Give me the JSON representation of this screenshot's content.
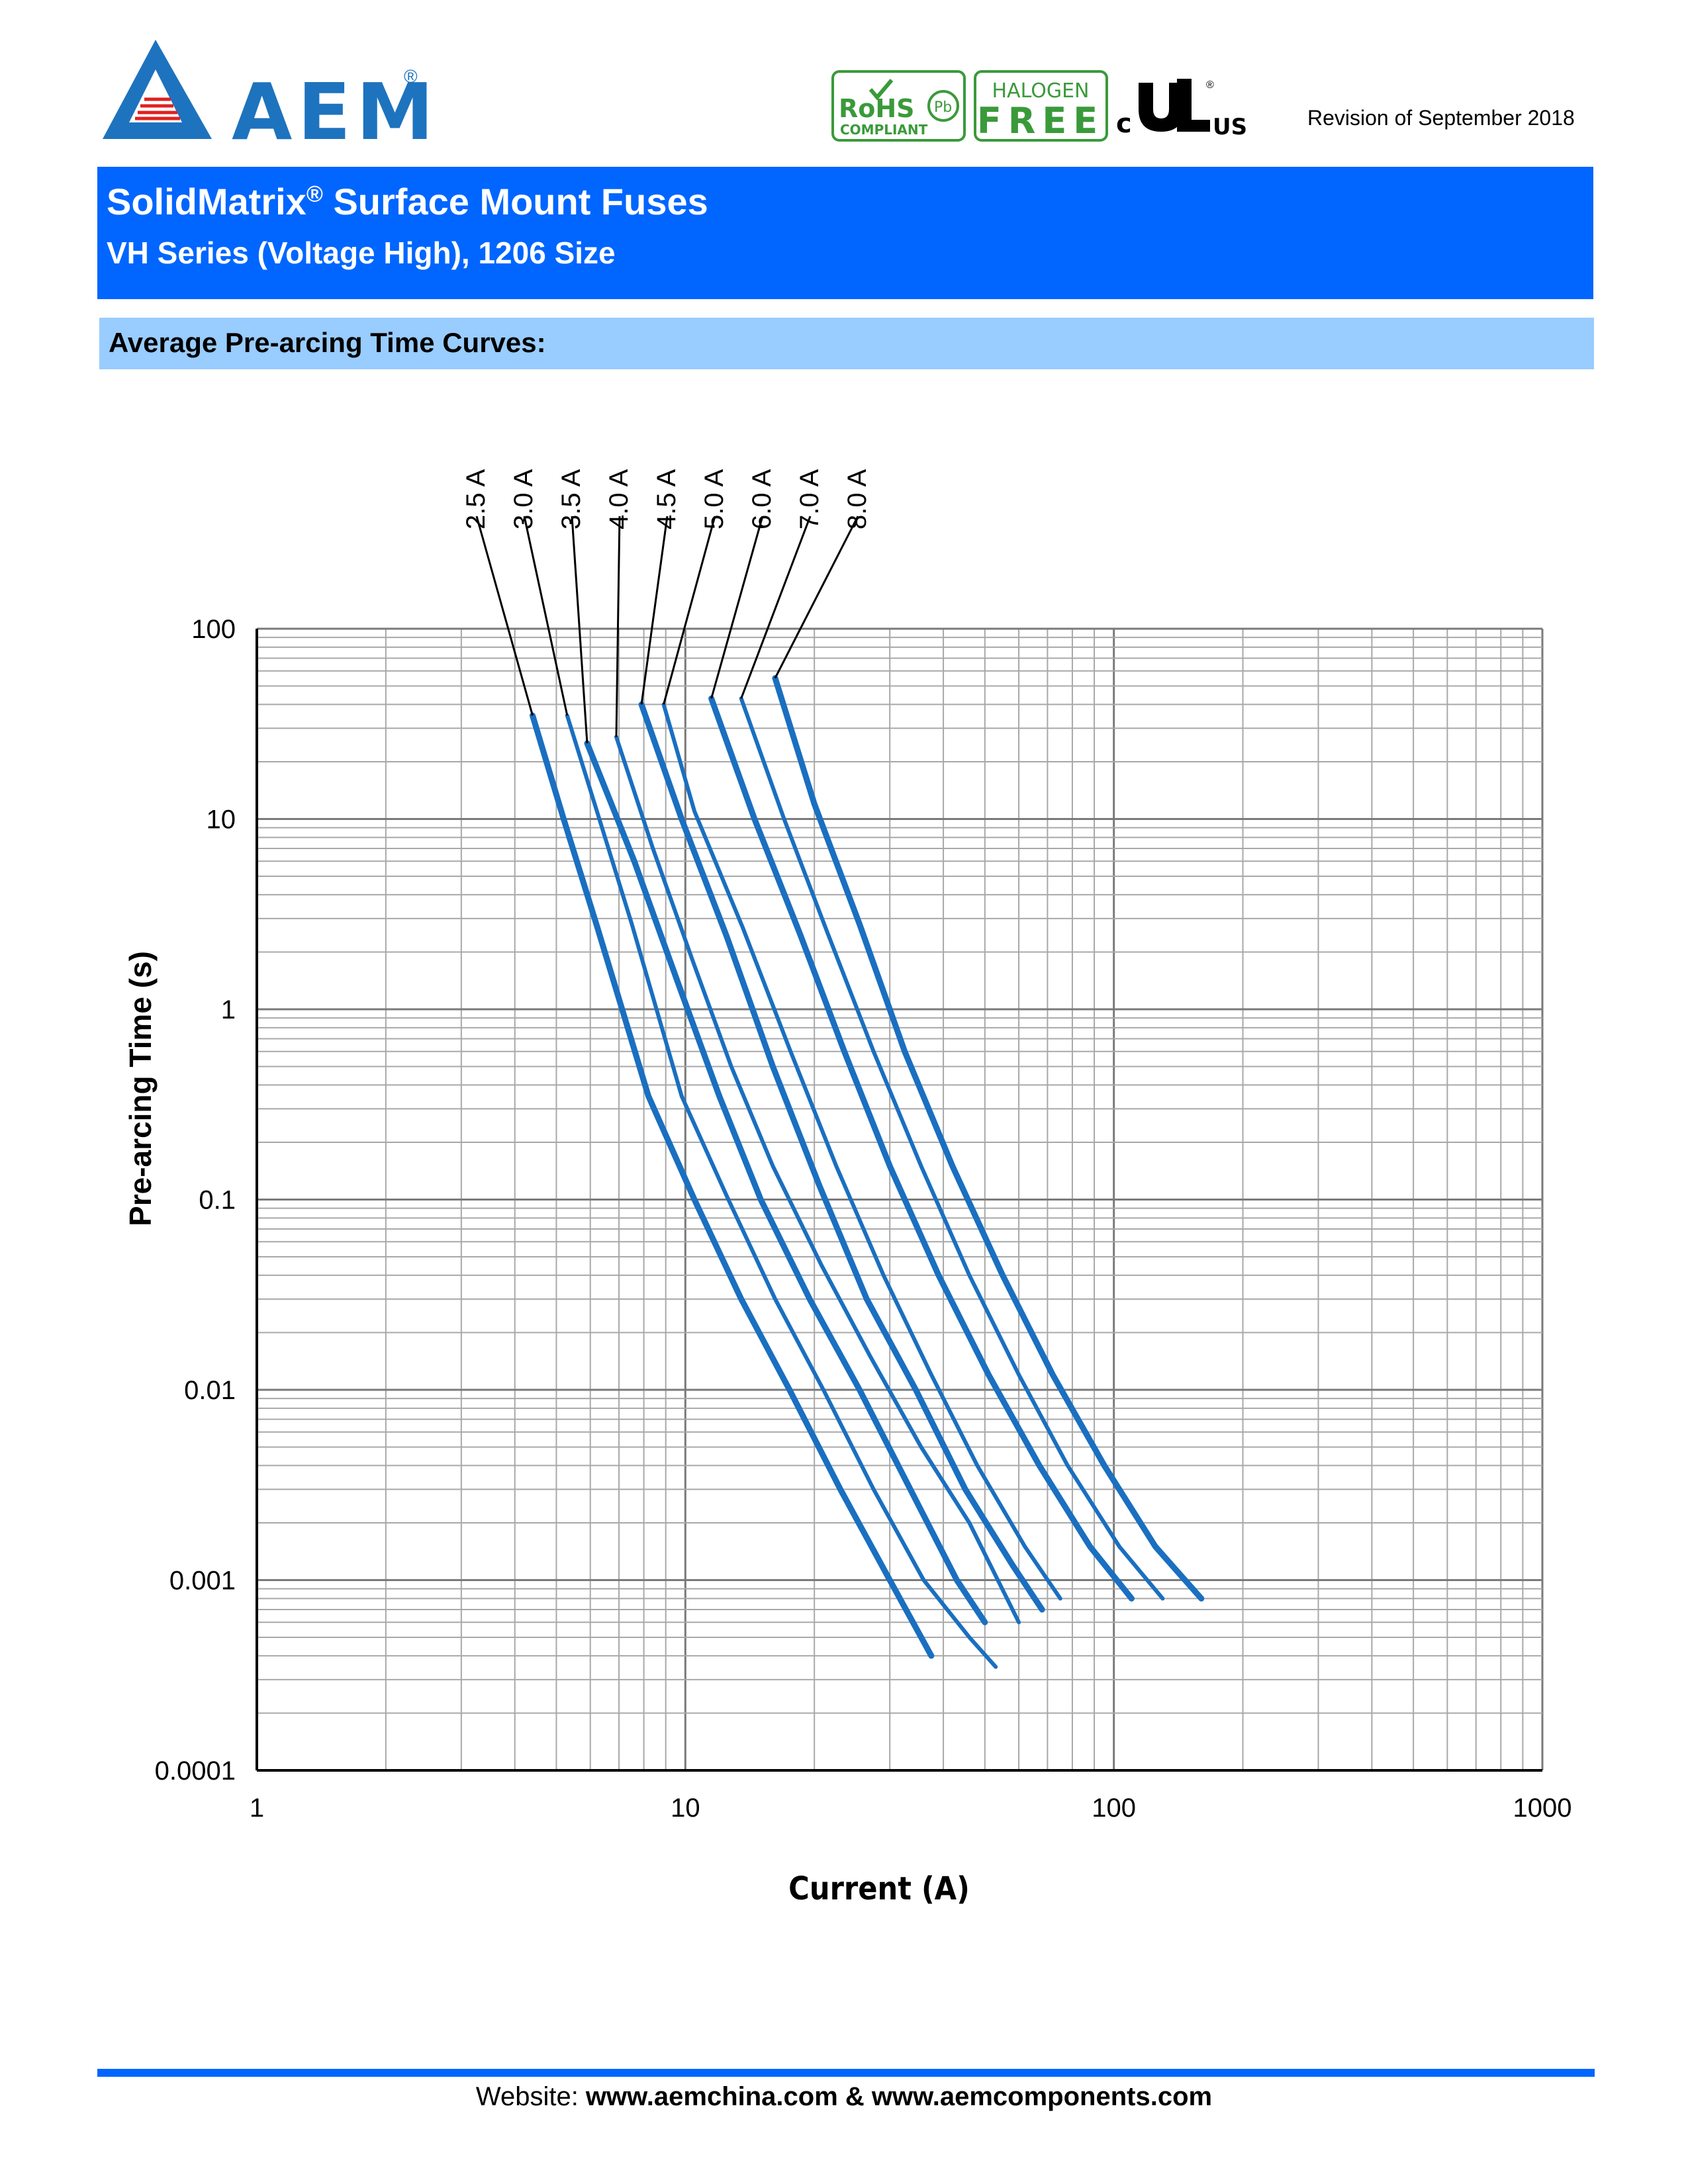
{
  "header": {
    "logo_text": "AEM",
    "logo_mark": "®",
    "certifications": {
      "rohs": "RoHS",
      "rohs_sub": "COMPLIANT",
      "pb": "Pb",
      "halogen": "HALOGEN",
      "free": "FREE",
      "ul_c": "c",
      "ul_us": "US",
      "ul_mark": "®"
    },
    "revision": "Revision of September 2018",
    "brand_color": "#1e73be"
  },
  "title": {
    "main_prefix": "SolidMatrix",
    "main_reg": "®",
    "main_suffix": " Surface Mount Fuses",
    "sub": "VH Series (Voltage High), 1206 Size",
    "band_color": "#0066ff"
  },
  "section": {
    "label": "Average Pre-arcing Time Curves:",
    "band_color": "#99ccff"
  },
  "chart_data": {
    "type": "line",
    "title": "",
    "xlabel": "Current (A)",
    "ylabel": "Pre-arcing Time (s)",
    "xscale": "log",
    "yscale": "log",
    "xlim": [
      1,
      1000
    ],
    "ylim": [
      0.0001,
      100
    ],
    "x_ticks": [
      "1",
      "10",
      "100",
      "1000"
    ],
    "y_ticks": [
      "0.0001",
      "0.001",
      "0.01",
      "0.1",
      "1",
      "10",
      "100"
    ],
    "grid": true,
    "line_color": "#1a6fc0",
    "series": [
      {
        "name": "2.5 A",
        "x": [
          4.4,
          5.2,
          6.2,
          8.2,
          10.5,
          13.5,
          17.5,
          23,
          30,
          37.5
        ],
        "y": [
          35,
          10,
          2.8,
          0.35,
          0.1,
          0.03,
          0.01,
          0.003,
          0.001,
          0.0004
        ]
      },
      {
        "name": "3.0 A",
        "x": [
          5.3,
          6.3,
          7.5,
          9.8,
          12.6,
          16.2,
          21,
          27.5,
          36,
          46,
          53
        ],
        "y": [
          35,
          10,
          2.8,
          0.35,
          0.1,
          0.03,
          0.01,
          0.003,
          0.001,
          0.0005,
          0.00035
        ]
      },
      {
        "name": "3.5 A",
        "x": [
          5.9,
          7.6,
          9.7,
          12,
          15,
          19.5,
          25.5,
          33.5,
          43,
          50
        ],
        "y": [
          25,
          6,
          1.3,
          0.35,
          0.1,
          0.03,
          0.01,
          0.003,
          0.001,
          0.0006
        ]
      },
      {
        "name": "4.0 A",
        "x": [
          6.9,
          8.4,
          10.4,
          12.8,
          16,
          20.8,
          27,
          35.5,
          46,
          60
        ],
        "y": [
          27,
          7,
          1.8,
          0.5,
          0.15,
          0.045,
          0.015,
          0.005,
          0.002,
          0.0006
        ]
      },
      {
        "name": "4.5 A",
        "x": [
          7.9,
          9.8,
          12.5,
          16,
          20.5,
          26.5,
          34.5,
          45,
          58,
          68
        ],
        "y": [
          40,
          10,
          2.4,
          0.5,
          0.12,
          0.03,
          0.01,
          0.003,
          0.0012,
          0.0007
        ]
      },
      {
        "name": "5.0 A",
        "x": [
          8.9,
          10.5,
          13.6,
          17.6,
          22.5,
          29,
          37.5,
          48,
          62,
          75
        ],
        "y": [
          40,
          11,
          2.7,
          0.6,
          0.15,
          0.04,
          0.012,
          0.004,
          0.0015,
          0.0008
        ]
      },
      {
        "name": "6.0 A",
        "x": [
          11.5,
          14.5,
          18.5,
          23.5,
          30,
          39,
          51,
          67,
          88,
          110
        ],
        "y": [
          43,
          10,
          2.5,
          0.6,
          0.15,
          0.04,
          0.012,
          0.004,
          0.0015,
          0.0008
        ]
      },
      {
        "name": "7.0 A",
        "x": [
          13.5,
          17,
          21.5,
          27.5,
          35.5,
          46,
          60,
          78,
          103,
          130
        ],
        "y": [
          43,
          10,
          2.5,
          0.6,
          0.15,
          0.04,
          0.012,
          0.004,
          0.0015,
          0.0008
        ]
      },
      {
        "name": "8.0 A",
        "x": [
          16.2,
          20,
          25.5,
          32.5,
          42,
          55,
          72,
          95,
          125,
          160
        ],
        "y": [
          55,
          12,
          2.8,
          0.6,
          0.15,
          0.04,
          0.012,
          0.004,
          0.0015,
          0.0008
        ]
      }
    ]
  },
  "footer": {
    "prefix": "Website:  ",
    "links": "www.aemchina.com & www.aemcomponents.com",
    "line_color": "#0066ff"
  }
}
